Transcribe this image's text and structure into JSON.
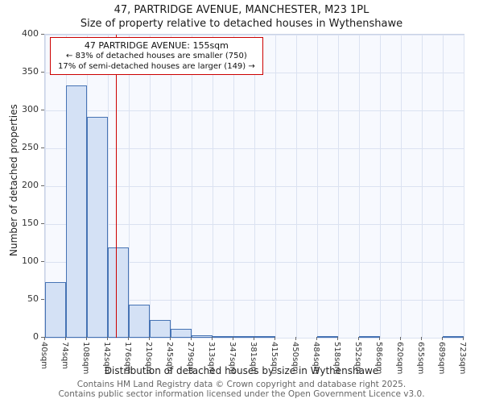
{
  "title": "47, PARTRIDGE AVENUE, MANCHESTER, M23 1PL",
  "subtitle": "Size of property relative to detached houses in Wythenshawe",
  "annotation": {
    "line1": "47 PARTRIDGE AVENUE: 155sqm",
    "line2": "← 83% of detached houses are smaller (750)",
    "line3": "17% of semi-detached houses are larger (149) →"
  },
  "footer": {
    "line1": "Contains HM Land Registry data © Crown copyright and database right 2025.",
    "line2": "Contains public sector information licensed under the Open Government Licence v3.0."
  },
  "chart_data": {
    "type": "bar",
    "title": "47, PARTRIDGE AVENUE, MANCHESTER, M23 1PL",
    "subtitle": "Size of property relative to detached houses in Wythenshawe",
    "xlabel": "Distribution of detached houses by size in Wythenshawe",
    "ylabel": "Number of detached properties",
    "categories": [
      "40sqm",
      "74sqm",
      "108sqm",
      "142sqm",
      "176sqm",
      "210sqm",
      "245sqm",
      "279sqm",
      "313sqm",
      "347sqm",
      "381sqm",
      "415sqm",
      "450sqm",
      "484sqm",
      "518sqm",
      "552sqm",
      "586sqm",
      "620sqm",
      "655sqm",
      "689sqm",
      "723sqm"
    ],
    "bin_edges_sqm": [
      40,
      74,
      108,
      142,
      176,
      210,
      245,
      279,
      313,
      347,
      381,
      415,
      450,
      484,
      518,
      552,
      586,
      620,
      655,
      689,
      723
    ],
    "values": [
      73,
      333,
      291,
      119,
      44,
      23,
      12,
      3,
      2,
      1,
      1,
      0,
      0,
      2,
      0,
      1,
      0,
      0,
      0,
      1
    ],
    "ylim": [
      0,
      400
    ],
    "ytick_step": 50,
    "grid": true,
    "legend": "none",
    "marker": {
      "value_sqm": 155,
      "label": "47 PARTRIDGE AVENUE: 155sqm",
      "color": "#cc0000"
    },
    "bar_fill": "#d4e1f5",
    "bar_edge": "#4673b4",
    "grid_color": "#dbe2f1",
    "plot_bg": "#f7f9fe"
  }
}
